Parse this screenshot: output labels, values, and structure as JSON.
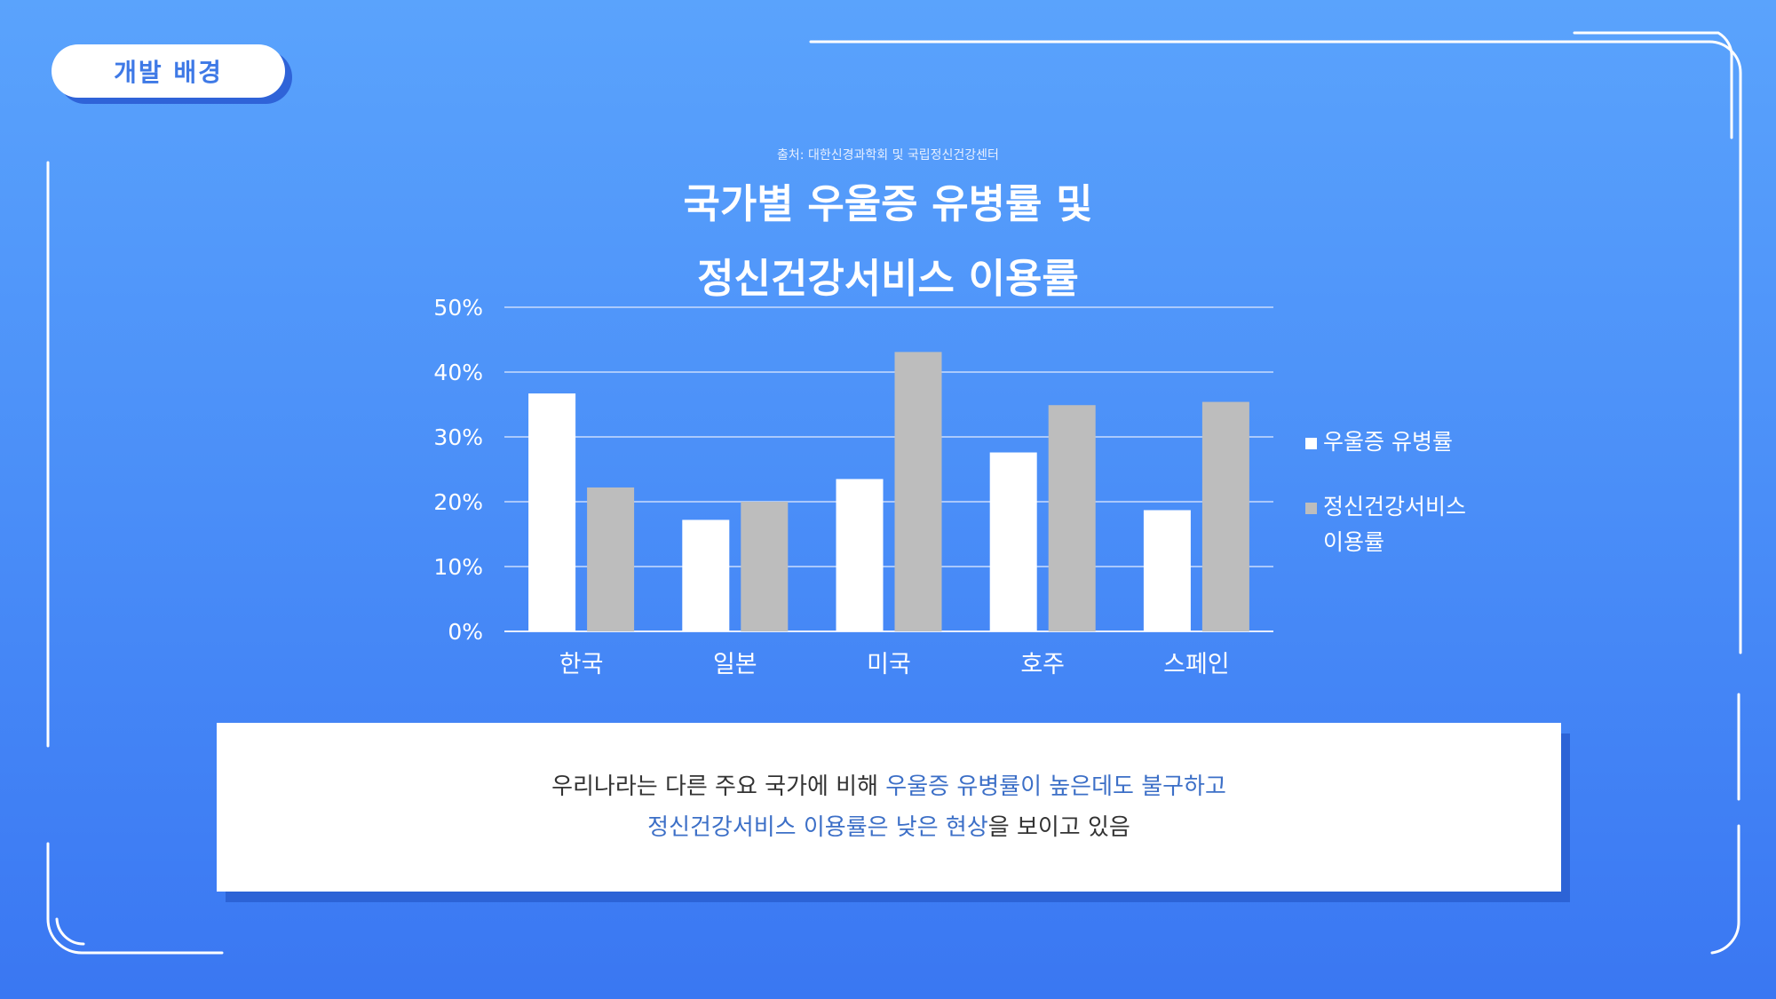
{
  "badge": {
    "label": "개발 배경"
  },
  "source": "출처: 대한신경과학회 및 국립정신건강센터",
  "title_lines": [
    "국가별 우울증 유병률 및",
    "정신건강서비스 이용률"
  ],
  "colors": {
    "series1": "#ffffff",
    "series2": "#bdbdbd",
    "highlight": "#3c6fc7"
  },
  "chart_data": {
    "type": "bar",
    "title": "국가별 우울증 유병률 및 정신건강서비스 이용률",
    "categories": [
      "한국",
      "일본",
      "미국",
      "호주",
      "스페인"
    ],
    "series": [
      {
        "name": "우울증 유병률",
        "values": [
          36.7,
          17.2,
          23.5,
          27.6,
          18.7
        ]
      },
      {
        "name": "정신건강서비스 이용률",
        "values": [
          22.2,
          20.0,
          43.1,
          34.9,
          35.4
        ]
      }
    ],
    "ylim": [
      0,
      50
    ],
    "yticks": [
      "0%",
      "10%",
      "20%",
      "30%",
      "40%",
      "50%"
    ],
    "grid": true,
    "legend": "right"
  },
  "legend": {
    "item1": "우울증 유병률",
    "item2_line1": "정신건강서비스",
    "item2_line2": "이용률"
  },
  "note": {
    "line1_plain": "우리나라는 다른 주요 국가에 비해 ",
    "line1_hl": "우울증 유병률이 높은데도 불구하고",
    "line2_hl": "정신건강서비스 이용률은 낮은 현상",
    "line2_plain": "을 보이고 있음"
  }
}
